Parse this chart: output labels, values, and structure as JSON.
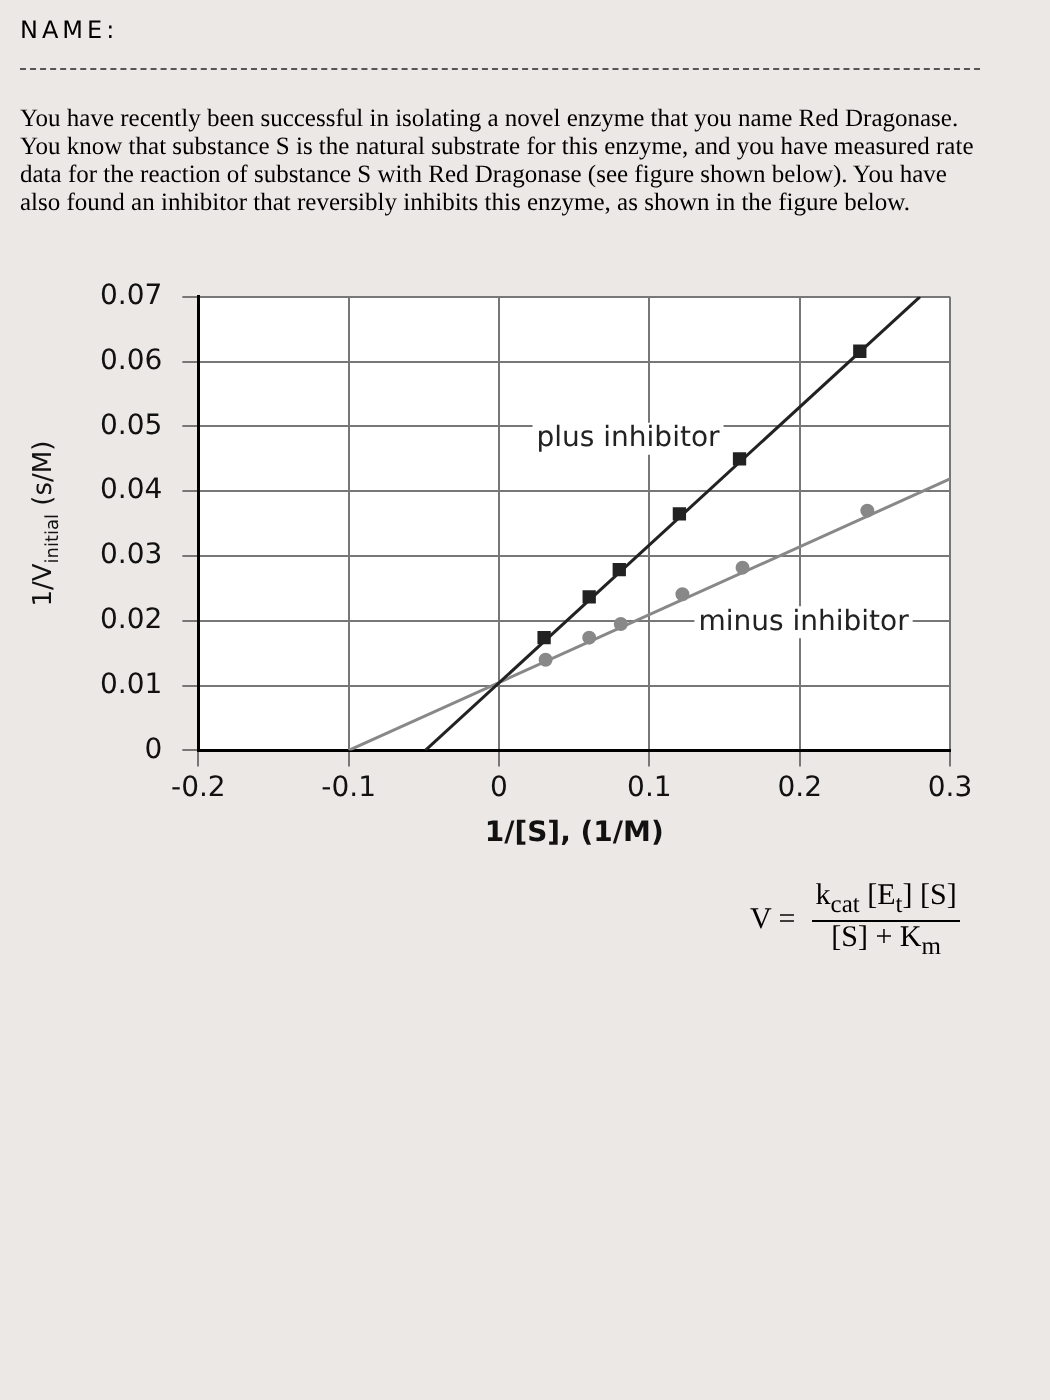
{
  "chart_data": {
    "type": "scatter",
    "xlabel": "1/[S], (1/M)",
    "ylabel": "1/V$_{initial}$ (s/M)",
    "annotations": [
      "NAME:",
      "You have recently been successful in isolating a novel enzyme that you name Red Dragonase. You know that substance S is the natural substrate for this enzyme, and you have measured rate data for the reaction of substance S with Red Dragonase (see figure shown below).  You have also found an inhibitor that reversibly inhibits this enzyme, as shown in the figure below.",
      "V =",
      "k$_{cat}$ [E$_{t}$] [S]",
      "[S] + K$_{m}$"
    ],
    "series": [
      {
        "name": "plus inhibitor",
        "marker": "square",
        "color": "#222222",
        "x": [
          0.03,
          0.06,
          0.08,
          0.12,
          0.16,
          0.24
        ],
        "values": [
          0.0174,
          0.0237,
          0.0279,
          0.0365,
          0.045,
          0.0616
        ]
      },
      {
        "name": "minus inhibitor",
        "marker": "circle",
        "color": "#888888",
        "x": [
          0.031,
          0.06,
          0.081,
          0.122,
          0.162,
          0.245
        ],
        "values": [
          0.014,
          0.0174,
          0.0195,
          0.0241,
          0.0282,
          0.037
        ]
      },
      {
        "type": "line",
        "marker": "none",
        "color": "#222222",
        "x": [
          -0.049,
          0.28
        ],
        "values": [
          0,
          0.07
        ]
      },
      {
        "type": "line",
        "marker": "none",
        "color": "#888888",
        "x": [
          -0.1,
          0.3
        ],
        "values": [
          0,
          0.0419
        ]
      }
    ],
    "xlim": [
      -0.2,
      0.3
    ],
    "xticks": [
      -0.2,
      -0.1,
      0,
      0.1,
      0.2,
      0.3
    ],
    "ylim": [
      0,
      0.07
    ],
    "yticks": [
      0,
      0.01,
      0.02,
      0.03,
      0.04,
      0.05,
      0.06,
      0.07
    ],
    "grid": true,
    "legend": false
  }
}
